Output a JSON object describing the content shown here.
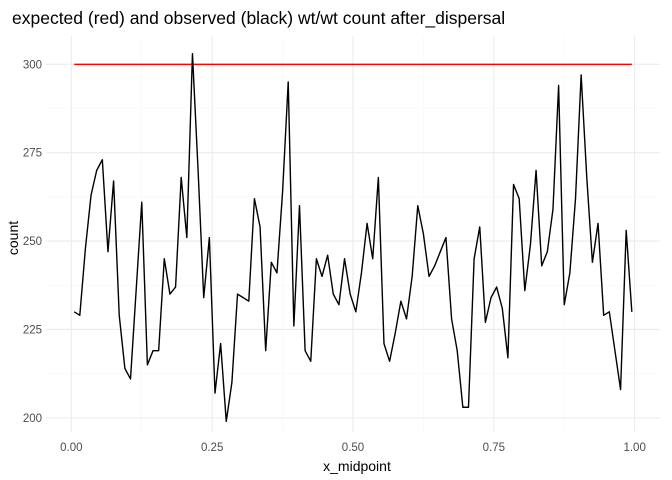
{
  "chart_data": {
    "type": "line",
    "title": "expected (red) and observed (black) wt/wt count after_dispersal",
    "xlabel": "x_midpoint",
    "ylabel": "count",
    "xlim": [
      -0.045,
      1.045
    ],
    "ylim": [
      196,
      308
    ],
    "x_ticks": [
      0.0,
      0.25,
      0.5,
      0.75,
      1.0
    ],
    "x_tick_labels": [
      "0.00",
      "0.25",
      "0.50",
      "0.75",
      "1.00"
    ],
    "y_ticks": [
      200,
      225,
      250,
      275,
      300
    ],
    "y_tick_labels": [
      "200",
      "225",
      "250",
      "275",
      "300"
    ],
    "grid": true,
    "colors": {
      "expected": "#ff0000",
      "observed": "#000000",
      "grid_major": "#ebebeb",
      "grid_minor": "#f5f5f5"
    },
    "series": [
      {
        "key": "expected",
        "x": [
          0.005,
          0.995
        ],
        "y": [
          300,
          300
        ]
      },
      {
        "key": "observed",
        "x": [
          0.005,
          0.015,
          0.025,
          0.035,
          0.045,
          0.055,
          0.065,
          0.075,
          0.085,
          0.095,
          0.105,
          0.115,
          0.125,
          0.135,
          0.145,
          0.155,
          0.165,
          0.175,
          0.185,
          0.195,
          0.205,
          0.215,
          0.225,
          0.235,
          0.245,
          0.255,
          0.265,
          0.275,
          0.285,
          0.295,
          0.305,
          0.315,
          0.325,
          0.335,
          0.345,
          0.355,
          0.365,
          0.375,
          0.385,
          0.395,
          0.405,
          0.415,
          0.425,
          0.435,
          0.445,
          0.455,
          0.465,
          0.475,
          0.485,
          0.495,
          0.505,
          0.515,
          0.525,
          0.535,
          0.545,
          0.555,
          0.565,
          0.575,
          0.585,
          0.595,
          0.605,
          0.615,
          0.625,
          0.635,
          0.645,
          0.655,
          0.665,
          0.675,
          0.685,
          0.695,
          0.705,
          0.715,
          0.725,
          0.735,
          0.745,
          0.755,
          0.765,
          0.775,
          0.785,
          0.795,
          0.805,
          0.815,
          0.825,
          0.835,
          0.845,
          0.855,
          0.865,
          0.875,
          0.885,
          0.895,
          0.905,
          0.915,
          0.925,
          0.935,
          0.945,
          0.955,
          0.965,
          0.975,
          0.985,
          0.995
        ],
        "y": [
          230,
          229,
          248,
          263,
          270,
          273,
          247,
          267,
          229,
          214,
          211,
          236,
          261,
          215,
          219,
          219,
          245,
          235,
          237,
          268,
          251,
          303,
          270,
          234,
          251,
          207,
          221,
          199,
          210,
          235,
          234,
          233,
          262,
          254,
          219,
          244,
          241,
          264,
          295,
          226,
          260,
          219,
          216,
          245,
          240,
          246,
          235,
          232,
          245,
          235,
          230,
          241,
          255,
          245,
          268,
          221,
          216,
          224,
          233,
          228,
          240,
          260,
          252,
          240,
          243,
          247,
          251,
          228,
          219,
          203,
          203,
          245,
          254,
          227,
          234,
          237,
          231,
          217,
          266,
          262,
          236,
          249,
          270,
          243,
          247,
          259,
          294,
          232,
          241,
          262,
          297,
          268,
          244,
          255,
          229,
          230,
          219,
          208,
          253,
          230
        ]
      }
    ]
  }
}
